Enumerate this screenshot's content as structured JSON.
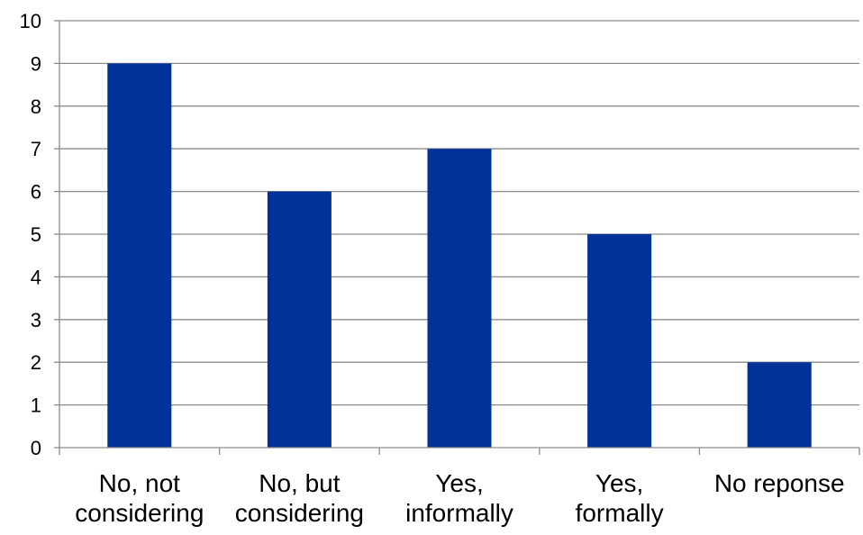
{
  "chart_data": {
    "type": "bar",
    "title": "",
    "xlabel": "",
    "ylabel": "",
    "categories": [
      [
        "No, not",
        "considering"
      ],
      [
        "No, but",
        "considering"
      ],
      [
        "Yes,",
        "informally"
      ],
      [
        "Yes,",
        "formally"
      ],
      [
        "No reponse"
      ]
    ],
    "values": [
      9,
      6,
      7,
      5,
      2
    ],
    "ylim": [
      0,
      10
    ],
    "yticks": [
      "0",
      "1",
      "2",
      "3",
      "4",
      "5",
      "6",
      "7",
      "8",
      "9",
      "10"
    ],
    "grid": true,
    "legend": "none",
    "colors": {
      "bar": "#003399",
      "grid": "#8c8c8c",
      "axis": "#8c8c8c"
    }
  }
}
